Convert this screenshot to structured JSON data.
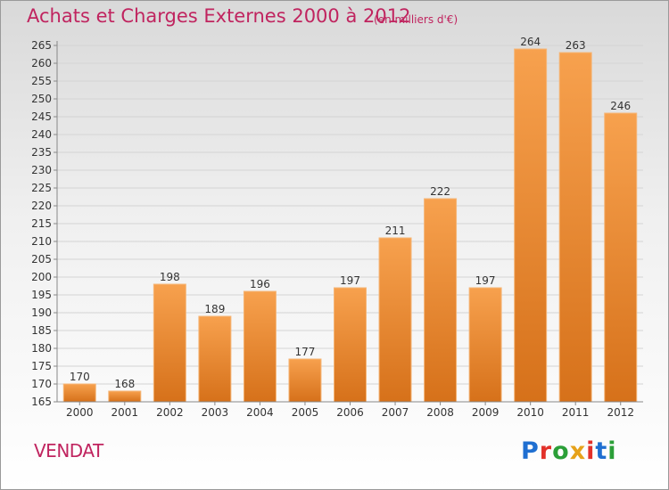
{
  "header": {
    "title": "Achats et Charges Externes 2000 à 2012",
    "subtitle": "(en milliers d'€)"
  },
  "footer": {
    "commune": "VENDAT",
    "logo": "Proxiti"
  },
  "colors": {
    "title": "#c0245f",
    "bar_light": "#f7a14e",
    "bar_dark": "#d6711a",
    "logo": [
      "#1f6fd1",
      "#e2312a",
      "#2b9f38",
      "#e6a21a",
      "#e2312a",
      "#1f6fd1",
      "#2b9f38"
    ]
  },
  "chart_data": {
    "type": "bar",
    "categories": [
      "2000",
      "2001",
      "2002",
      "2003",
      "2004",
      "2005",
      "2006",
      "2007",
      "2008",
      "2009",
      "2010",
      "2011",
      "2012"
    ],
    "values": [
      170,
      168,
      198,
      189,
      196,
      177,
      197,
      211,
      222,
      197,
      264,
      263,
      246
    ],
    "title": "Achats et Charges Externes 2000 à 2012",
    "xlabel": "",
    "ylabel": "",
    "ylim": [
      165,
      265
    ],
    "yticks": [
      165,
      170,
      175,
      180,
      185,
      190,
      195,
      200,
      205,
      210,
      215,
      220,
      225,
      230,
      235,
      240,
      245,
      250,
      255,
      260,
      265
    ],
    "grid": true,
    "data_labels": true
  }
}
